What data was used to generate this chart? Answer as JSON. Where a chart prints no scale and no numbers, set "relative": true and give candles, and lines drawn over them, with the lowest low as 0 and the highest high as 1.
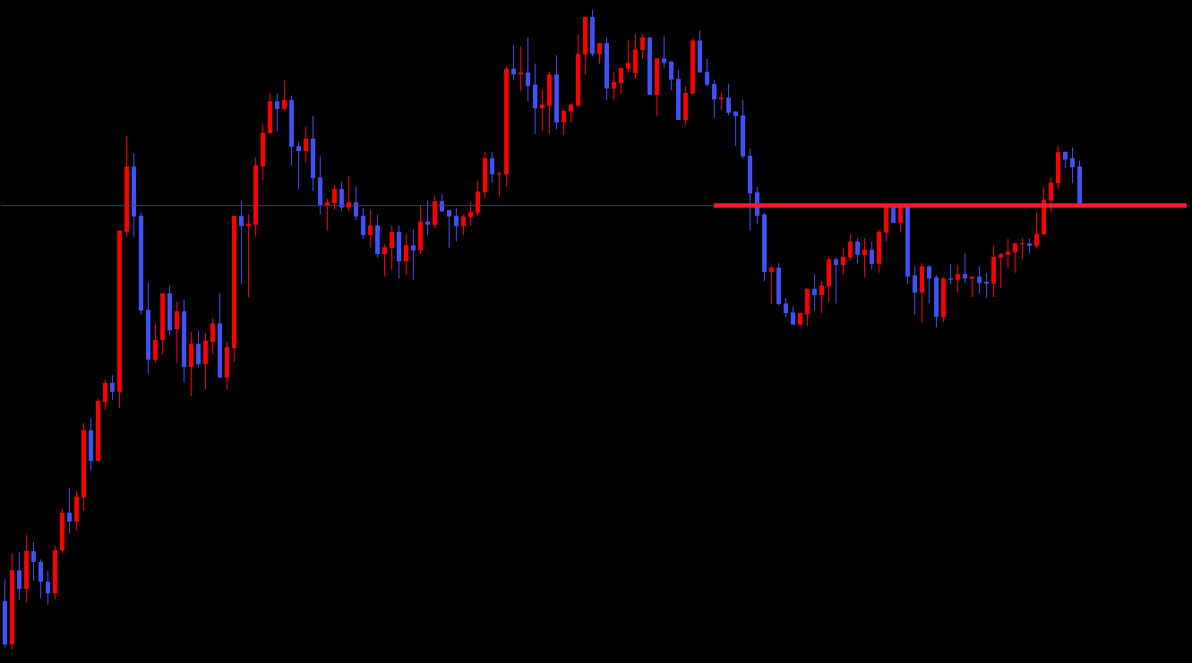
{
  "chart_data": {
    "type": "candlestick",
    "relative": true,
    "categories": [
      null,
      null,
      null,
      null,
      null,
      null,
      null,
      null,
      null,
      null,
      null,
      null,
      null,
      null,
      null,
      null,
      null,
      null,
      null,
      null,
      null,
      null,
      null,
      null,
      null,
      null,
      null,
      null,
      null,
      null,
      null,
      null,
      null,
      null,
      null,
      null,
      null,
      null,
      null,
      null,
      null,
      null,
      null,
      null,
      null,
      null,
      null,
      null,
      null,
      null,
      null,
      null,
      null,
      null,
      null,
      null,
      null,
      null,
      null,
      null,
      null,
      null,
      null,
      null,
      null,
      null,
      null,
      null,
      null,
      null,
      null,
      null,
      null,
      null,
      null,
      null,
      null,
      null,
      null,
      null,
      null,
      null,
      null,
      null,
      null,
      null,
      null,
      null,
      null,
      null,
      null,
      null,
      null,
      null,
      null,
      null,
      null,
      null,
      null,
      null,
      null,
      null,
      null,
      null,
      null,
      null,
      null,
      null,
      null,
      null,
      null,
      null,
      null,
      null,
      null,
      null,
      null,
      null,
      null,
      null,
      null,
      null,
      null,
      null,
      null,
      null,
      null,
      null,
      null,
      null,
      null,
      null,
      null,
      null,
      null,
      null,
      null,
      null,
      null,
      null,
      null,
      null,
      null,
      null,
      null,
      null,
      null,
      null,
      null,
      null,
      null,
      null,
      null,
      null,
      null,
      null,
      null,
      null,
      null,
      null,
      null,
      null,
      null,
      null,
      null,
      null
    ],
    "colors": [
      "#3f51f5",
      "#ff0000",
      "#3f51f5",
      "#ff0000",
      "#3f51f5",
      "#3f51f5",
      "#3f51f5",
      "#ff0000",
      "#ff0000",
      "#3f51f5",
      "#ff0000",
      "#ff0000",
      "#3f51f5",
      "#ff0000",
      "#ff0000",
      "#3f51f5",
      "#ff0000",
      "#ff0000",
      "#3f51f5",
      "#3f51f5",
      "#3f51f5",
      "#ff0000",
      "#ff0000",
      "#3f51f5",
      "#ff0000",
      "#3f51f5",
      "#ff0000",
      "#3f51f5",
      "#ff0000",
      "#ff0000",
      "#3f51f5",
      "#ff0000",
      "#ff0000",
      "#3f51f5",
      "#ff0000",
      "#ff0000",
      "#ff0000",
      "#ff0000",
      "#3f51f5",
      "#ff0000",
      "#3f51f5",
      "#3f51f5",
      "#ff0000",
      "#3f51f5",
      "#3f51f5",
      "#ff0000",
      "#ff0000",
      "#3f51f5",
      "#ff0000",
      "#3f51f5",
      "#3f51f5",
      "#ff0000",
      "#3f51f5",
      "#ff0000",
      "#ff0000",
      "#3f51f5",
      "#ff0000",
      "#3f51f5",
      "#ff0000",
      "#3f51f5",
      "#ff0000",
      "#3f51f5",
      "#3f51f5",
      "#3f51f5",
      "#ff0000",
      "#ff0000",
      "#ff0000",
      "#ff0000",
      "#3f51f5",
      "#ff0000",
      "#ff0000",
      "#3f51f5",
      "#ff0000",
      "#3f51f5",
      "#3f51f5",
      "#ff0000",
      "#ff0000",
      "#3f51f5",
      "#ff0000",
      "#ff0000",
      "#ff0000",
      "#ff0000",
      "#3f51f5",
      "#ff0000",
      "#3f51f5",
      "#ff0000",
      "#ff0000",
      "#ff0000",
      "#ff0000",
      "#ff0000",
      "#3f51f5",
      "#ff0000",
      "#3f51f5",
      "#3f51f5",
      "#3f51f5",
      "#ff0000",
      "#ff0000",
      "#3f51f5",
      "#3f51f5",
      "#3f51f5",
      "#ff0000",
      "#3f51f5",
      "#3f51f5",
      "#3f51f5",
      "#3f51f5",
      "#3f51f5",
      "#3f51f5",
      "#ff0000",
      "#3f51f5",
      "#3f51f5",
      "#3f51f5",
      "#ff0000",
      "#ff0000",
      "#3f51f5",
      "#ff0000",
      "#ff0000",
      "#3f51f5",
      "#ff0000",
      "#ff0000",
      "#3f51f5",
      "#ff0000",
      "#3f51f5",
      "#ff0000",
      "#ff0000",
      "#3f51f5",
      "#ff0000",
      "#3f51f5",
      "#3f51f5",
      "#ff0000",
      "#3f51f5",
      "#3f51f5",
      "#ff0000",
      "#3f51f5",
      "#ff0000",
      "#3f51f5",
      "#ff0000",
      "#3f51f5",
      "#3f51f5",
      "#ff0000",
      "#ff0000",
      "#ff0000",
      "#ff0000",
      "#ff0000",
      "#3f51f5",
      "#ff0000",
      "#ff0000",
      "#ff0000",
      "#ff0000",
      "#3f51f5",
      "#3f51f5",
      "#3f51f5",
      null,
      null,
      null,
      null,
      null,
      null,
      null,
      null,
      null,
      null,
      null,
      null,
      null,
      null,
      null
    ],
    "ohlc": [
      [
        0.076,
        0.11,
        0.003,
        0.008
      ],
      [
        0.008,
        0.15,
        0,
        0.124
      ],
      [
        0.124,
        0.152,
        0.078,
        0.095
      ],
      [
        0.095,
        0.179,
        0.074,
        0.154
      ],
      [
        0.154,
        0.168,
        0.108,
        0.137
      ],
      [
        0.137,
        0.141,
        0.08,
        0.106
      ],
      [
        0.106,
        0.123,
        0.07,
        0.088
      ],
      [
        0.088,
        0.162,
        0.078,
        0.155
      ],
      [
        0.155,
        0.22,
        0.151,
        0.214
      ],
      [
        0.214,
        0.252,
        0.182,
        0.2
      ],
      [
        0.2,
        0.248,
        0.187,
        0.239
      ],
      [
        0.238,
        0.354,
        0.217,
        0.343
      ],
      [
        0.343,
        0.362,
        0.28,
        0.295
      ],
      [
        0.295,
        0.392,
        0.294,
        0.389
      ],
      [
        0.387,
        0.422,
        0.375,
        0.417
      ],
      [
        0.417,
        0.429,
        0.39,
        0.403
      ],
      [
        0.403,
        0.655,
        0.378,
        0.655
      ],
      [
        0.653,
        0.803,
        0.645,
        0.755
      ],
      [
        0.755,
        0.776,
        0.645,
        0.677
      ],
      [
        0.678,
        0.683,
        0.524,
        0.53
      ],
      [
        0.531,
        0.573,
        0.431,
        0.453
      ],
      [
        0.453,
        0.51,
        0.449,
        0.484
      ],
      [
        0.484,
        0.557,
        0.462,
        0.557
      ],
      [
        0.557,
        0.569,
        0.491,
        0.499
      ],
      [
        0.501,
        0.544,
        0.448,
        0.529
      ],
      [
        0.529,
        0.547,
        0.417,
        0.442
      ],
      [
        0.442,
        0.497,
        0.396,
        0.478
      ],
      [
        0.478,
        0.499,
        0.441,
        0.446
      ],
      [
        0.446,
        0.495,
        0.407,
        0.483
      ],
      [
        0.481,
        0.517,
        0.462,
        0.51
      ],
      [
        0.51,
        0.557,
        0.425,
        0.425
      ],
      [
        0.425,
        0.481,
        0.407,
        0.473
      ],
      [
        0.471,
        0.678,
        0.45,
        0.678
      ],
      [
        0.678,
        0.702,
        0.571,
        0.662
      ],
      [
        0.662,
        0.68,
        0.551,
        0.666
      ],
      [
        0.664,
        0.769,
        0.646,
        0.757
      ],
      [
        0.755,
        0.821,
        0.734,
        0.808
      ],
      [
        0.807,
        0.87,
        0.807,
        0.857
      ],
      [
        0.857,
        0.869,
        0.81,
        0.845
      ],
      [
        0.845,
        0.89,
        0.843,
        0.859
      ],
      [
        0.859,
        0.866,
        0.757,
        0.786
      ],
      [
        0.787,
        0.793,
        0.72,
        0.779
      ],
      [
        0.779,
        0.817,
        0.762,
        0.799
      ],
      [
        0.799,
        0.834,
        0.717,
        0.737
      ],
      [
        0.738,
        0.771,
        0.68,
        0.695
      ],
      [
        0.695,
        0.705,
        0.655,
        0.699
      ],
      [
        0.698,
        0.726,
        0.688,
        0.72
      ],
      [
        0.72,
        0.731,
        0.685,
        0.691
      ],
      [
        0.691,
        0.74,
        0.685,
        0.699
      ],
      [
        0.699,
        0.724,
        0.671,
        0.677
      ],
      [
        0.678,
        0.691,
        0.642,
        0.648
      ],
      [
        0.648,
        0.687,
        0.629,
        0.663
      ],
      [
        0.663,
        0.68,
        0.613,
        0.618
      ],
      [
        0.618,
        0.634,
        0.583,
        0.629
      ],
      [
        0.628,
        0.663,
        0.594,
        0.653
      ],
      [
        0.653,
        0.663,
        0.58,
        0.607
      ],
      [
        0.607,
        0.65,
        0.586,
        0.632
      ],
      [
        0.632,
        0.657,
        0.578,
        0.624
      ],
      [
        0.624,
        0.695,
        0.618,
        0.669
      ],
      [
        0.669,
        0.702,
        0.648,
        0.664
      ],
      [
        0.664,
        0.709,
        0.659,
        0.701
      ],
      [
        0.701,
        0.712,
        0.684,
        0.685
      ],
      [
        0.687,
        0.687,
        0.628,
        0.677
      ],
      [
        0.678,
        0.69,
        0.638,
        0.662
      ],
      [
        0.662,
        0.68,
        0.648,
        0.677
      ],
      [
        0.676,
        0.699,
        0.662,
        0.684
      ],
      [
        0.683,
        0.733,
        0.678,
        0.716
      ],
      [
        0.715,
        0.778,
        0.706,
        0.768
      ],
      [
        0.768,
        0.778,
        0.73,
        0.743
      ],
      [
        0.743,
        0.747,
        0.709,
        0.744
      ],
      [
        0.743,
        0.912,
        0.724,
        0.908
      ],
      [
        0.908,
        0.945,
        0.89,
        0.899
      ],
      [
        0.899,
        0.943,
        0.873,
        0.902
      ],
      [
        0.902,
        0.957,
        0.857,
        0.881
      ],
      [
        0.883,
        0.916,
        0.806,
        0.846
      ],
      [
        0.846,
        0.876,
        0.811,
        0.852
      ],
      [
        0.85,
        0.903,
        0.807,
        0.899
      ],
      [
        0.899,
        0.929,
        0.813,
        0.824
      ],
      [
        0.824,
        0.845,
        0.804,
        0.842
      ],
      [
        0.841,
        0.853,
        0.824,
        0.852
      ],
      [
        0.85,
        0.961,
        0.849,
        0.931
      ],
      [
        0.93,
        0.989,
        0.899,
        0.989
      ],
      [
        0.989,
        1,
        0.927,
        0.931
      ],
      [
        0.931,
        0.948,
        0.915,
        0.948
      ],
      [
        0.948,
        0.957,
        0.859,
        0.877
      ],
      [
        0.877,
        0.902,
        0.86,
        0.887
      ],
      [
        0.885,
        0.909,
        0.869,
        0.909
      ],
      [
        0.908,
        0.952,
        0.903,
        0.917
      ],
      [
        0.901,
        0.962,
        0.892,
        0.938
      ],
      [
        0.937,
        0.962,
        0.923,
        0.957
      ],
      [
        0.957,
        0.958,
        0.867,
        0.867
      ],
      [
        0.867,
        0.924,
        0.834,
        0.924
      ],
      [
        0.924,
        0.959,
        0.909,
        0.917
      ],
      [
        0.919,
        0.92,
        0.874,
        0.891
      ],
      [
        0.892,
        0.906,
        0.828,
        0.828
      ],
      [
        0.828,
        0.88,
        0.82,
        0.87
      ],
      [
        0.869,
        0.955,
        0.869,
        0.952
      ],
      [
        0.952,
        0.968,
        0.902,
        0.902
      ],
      [
        0.903,
        0.923,
        0.88,
        0.883
      ],
      [
        0.884,
        0.891,
        0.831,
        0.86
      ],
      [
        0.86,
        0.871,
        0.843,
        0.863
      ],
      [
        0.863,
        0.884,
        0.835,
        0.839
      ],
      [
        0.841,
        0.842,
        0.787,
        0.834
      ],
      [
        0.835,
        0.859,
        0.768,
        0.771
      ],
      [
        0.772,
        0.783,
        0.655,
        0.713
      ],
      [
        0.715,
        0.723,
        0.666,
        0.678
      ],
      [
        0.68,
        0.683,
        0.576,
        0.59
      ],
      [
        0.59,
        0.599,
        0.54,
        0.597
      ],
      [
        0.597,
        0.604,
        0.538,
        0.54
      ],
      [
        0.541,
        0.55,
        0.52,
        0.526
      ],
      [
        0.527,
        0.536,
        0.508,
        0.508
      ],
      [
        0.508,
        0.527,
        0.506,
        0.526
      ],
      [
        0.524,
        0.564,
        0.506,
        0.564
      ],
      [
        0.564,
        0.587,
        0.53,
        0.554
      ],
      [
        0.554,
        0.576,
        0.526,
        0.569
      ],
      [
        0.568,
        0.614,
        0.543,
        0.61
      ],
      [
        0.61,
        0.613,
        0.541,
        0.601
      ],
      [
        0.601,
        0.628,
        0.586,
        0.614
      ],
      [
        0.613,
        0.649,
        0.608,
        0.638
      ],
      [
        0.638,
        0.643,
        0.604,
        0.617
      ],
      [
        0.617,
        0.643,
        0.582,
        0.625
      ],
      [
        0.625,
        0.638,
        0.594,
        0.603
      ],
      [
        0.603,
        0.656,
        0.589,
        0.653
      ],
      [
        0.652,
        0.694,
        0.638,
        0.691
      ],
      [
        0.691,
        0.694,
        0.667,
        0.667
      ],
      [
        0.667,
        0.694,
        0.652,
        0.691
      ],
      [
        0.691,
        0.694,
        0.572,
        0.583
      ],
      [
        0.585,
        0.599,
        0.523,
        0.558
      ],
      [
        0.558,
        0.604,
        0.512,
        0.599
      ],
      [
        0.599,
        0.601,
        0.541,
        0.58
      ],
      [
        0.582,
        0.585,
        0.503,
        0.52
      ],
      [
        0.52,
        0.582,
        0.512,
        0.58
      ],
      [
        0.58,
        0.603,
        0.571,
        0.578
      ],
      [
        0.578,
        0.601,
        0.558,
        0.587
      ],
      [
        0.587,
        0.62,
        0.573,
        0.58
      ],
      [
        0.58,
        0.583,
        0.551,
        0.583
      ],
      [
        0.583,
        0.599,
        0.557,
        0.573
      ],
      [
        0.575,
        0.589,
        0.55,
        0.572
      ],
      [
        0.572,
        0.631,
        0.551,
        0.614
      ],
      [
        0.613,
        0.62,
        0.565,
        0.618
      ],
      [
        0.617,
        0.642,
        0.597,
        0.622
      ],
      [
        0.621,
        0.636,
        0.589,
        0.635
      ],
      [
        0.634,
        0.643,
        0.61,
        0.635
      ],
      [
        0.635,
        0.642,
        0.62,
        0.631
      ],
      [
        0.631,
        0.683,
        0.628,
        0.65
      ],
      [
        0.649,
        0.723,
        0.649,
        0.703
      ],
      [
        0.702,
        0.738,
        0.683,
        0.73
      ],
      [
        0.729,
        0.787,
        0.72,
        0.778
      ],
      [
        0.778,
        0.778,
        0.752,
        0.766
      ],
      [
        0.768,
        0.785,
        0.729,
        0.754
      ],
      [
        0.755,
        0.764,
        0.695,
        0.695
      ],
      null,
      null,
      null,
      null,
      null,
      null,
      null,
      null,
      null,
      null,
      null,
      null,
      null,
      null,
      null
    ],
    "series": [
      {
        "type": "line",
        "color": "#ff1a2e",
        "values": [
          null,
          null,
          null,
          null,
          null,
          null,
          null,
          null,
          null,
          null,
          null,
          null,
          null,
          null,
          null,
          null,
          null,
          null,
          null,
          null,
          null,
          null,
          null,
          null,
          null,
          null,
          null,
          null,
          null,
          null,
          null,
          null,
          null,
          null,
          null,
          null,
          null,
          null,
          null,
          null,
          null,
          null,
          null,
          null,
          null,
          null,
          null,
          null,
          null,
          null,
          null,
          null,
          null,
          null,
          null,
          null,
          null,
          null,
          null,
          null,
          null,
          null,
          null,
          null,
          null,
          null,
          null,
          null,
          null,
          null,
          null,
          null,
          null,
          null,
          null,
          null,
          null,
          null,
          null,
          null,
          null,
          null,
          null,
          null,
          null,
          null,
          null,
          null,
          null,
          null,
          null,
          null,
          null,
          null,
          null,
          null,
          null,
          null,
          null,
          0.694,
          0.694,
          0.694,
          0.694,
          0.694,
          0.694,
          0.694,
          0.694,
          0.694,
          0.694,
          0.694,
          0.694,
          0.694,
          0.694,
          0.694,
          0.694,
          0.694,
          0.694,
          0.694,
          0.694,
          0.694,
          0.694,
          0.694,
          0.694,
          0.694,
          0.694,
          0.694,
          0.694,
          0.694,
          0.694,
          0.694,
          0.694,
          0.694,
          0.694,
          0.694,
          0.694,
          0.694,
          0.694,
          0.694,
          0.694,
          0.694,
          0.694,
          0.694,
          0.694,
          0.694,
          0.694,
          0.694,
          0.694,
          0.694,
          0.694,
          0.694,
          0.694,
          0.694,
          0.694,
          0.694,
          0.694,
          0.694,
          0.694,
          0.694,
          0.694,
          0.694,
          0.694,
          0.694,
          0.694,
          0.694,
          0.694,
          0.694
        ]
      }
    ],
    "ref_lines": [
      {
        "axis": "y",
        "value": 0.694,
        "color": "#4a4a5e"
      }
    ]
  }
}
